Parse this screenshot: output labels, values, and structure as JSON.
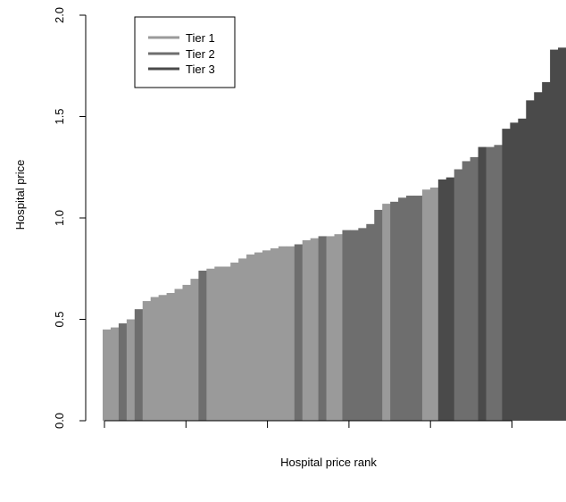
{
  "chart_data": {
    "type": "bar",
    "xlabel": "Hospital price rank",
    "ylabel": "Hospital price",
    "ylim": [
      0,
      2.0
    ],
    "y_ticks": [
      {
        "value": 0.0,
        "label": "0.0"
      },
      {
        "value": 0.5,
        "label": "0.5"
      },
      {
        "value": 1.0,
        "label": "1.0"
      },
      {
        "value": 1.5,
        "label": "1.5"
      },
      {
        "value": 2.0,
        "label": "2.0"
      }
    ],
    "x_tick_count": 6,
    "grid": false,
    "legend_position": "top-left",
    "tiers": [
      {
        "name": "Tier 1",
        "color": "#9a9a9a"
      },
      {
        "name": "Tier 2",
        "color": "#6e6e6e"
      },
      {
        "name": "Tier 3",
        "color": "#4a4a4a"
      }
    ],
    "bars": [
      {
        "value": 0.45,
        "tier": 1
      },
      {
        "value": 0.46,
        "tier": 1
      },
      {
        "value": 0.48,
        "tier": 2
      },
      {
        "value": 0.5,
        "tier": 1
      },
      {
        "value": 0.55,
        "tier": 2
      },
      {
        "value": 0.59,
        "tier": 1
      },
      {
        "value": 0.61,
        "tier": 1
      },
      {
        "value": 0.62,
        "tier": 1
      },
      {
        "value": 0.63,
        "tier": 1
      },
      {
        "value": 0.65,
        "tier": 1
      },
      {
        "value": 0.67,
        "tier": 1
      },
      {
        "value": 0.7,
        "tier": 1
      },
      {
        "value": 0.74,
        "tier": 2
      },
      {
        "value": 0.75,
        "tier": 1
      },
      {
        "value": 0.76,
        "tier": 1
      },
      {
        "value": 0.76,
        "tier": 1
      },
      {
        "value": 0.78,
        "tier": 1
      },
      {
        "value": 0.8,
        "tier": 1
      },
      {
        "value": 0.82,
        "tier": 1
      },
      {
        "value": 0.83,
        "tier": 1
      },
      {
        "value": 0.84,
        "tier": 1
      },
      {
        "value": 0.85,
        "tier": 1
      },
      {
        "value": 0.86,
        "tier": 1
      },
      {
        "value": 0.86,
        "tier": 1
      },
      {
        "value": 0.87,
        "tier": 2
      },
      {
        "value": 0.89,
        "tier": 1
      },
      {
        "value": 0.9,
        "tier": 1
      },
      {
        "value": 0.91,
        "tier": 2
      },
      {
        "value": 0.91,
        "tier": 1
      },
      {
        "value": 0.92,
        "tier": 1
      },
      {
        "value": 0.94,
        "tier": 2
      },
      {
        "value": 0.94,
        "tier": 2
      },
      {
        "value": 0.95,
        "tier": 2
      },
      {
        "value": 0.97,
        "tier": 2
      },
      {
        "value": 1.04,
        "tier": 2
      },
      {
        "value": 1.07,
        "tier": 1
      },
      {
        "value": 1.08,
        "tier": 2
      },
      {
        "value": 1.1,
        "tier": 2
      },
      {
        "value": 1.11,
        "tier": 2
      },
      {
        "value": 1.11,
        "tier": 2
      },
      {
        "value": 1.14,
        "tier": 1
      },
      {
        "value": 1.15,
        "tier": 1
      },
      {
        "value": 1.19,
        "tier": 3
      },
      {
        "value": 1.2,
        "tier": 3
      },
      {
        "value": 1.24,
        "tier": 2
      },
      {
        "value": 1.28,
        "tier": 2
      },
      {
        "value": 1.3,
        "tier": 2
      },
      {
        "value": 1.35,
        "tier": 3
      },
      {
        "value": 1.35,
        "tier": 2
      },
      {
        "value": 1.36,
        "tier": 2
      },
      {
        "value": 1.44,
        "tier": 3
      },
      {
        "value": 1.47,
        "tier": 3
      },
      {
        "value": 1.49,
        "tier": 3
      },
      {
        "value": 1.58,
        "tier": 3
      },
      {
        "value": 1.62,
        "tier": 3
      },
      {
        "value": 1.67,
        "tier": 3
      },
      {
        "value": 1.83,
        "tier": 3
      },
      {
        "value": 1.84,
        "tier": 3
      }
    ]
  }
}
